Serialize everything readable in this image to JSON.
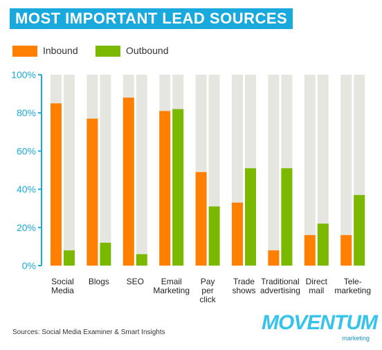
{
  "chart_data": {
    "type": "bar",
    "title": "MOST IMPORTANT LEAD SOURCES",
    "categories": [
      [
        "Social",
        "Media"
      ],
      [
        "Blogs"
      ],
      [
        "SEO"
      ],
      [
        "Email",
        "Marketing"
      ],
      [
        "Pay",
        "per",
        "click"
      ],
      [
        "Trade",
        "shows"
      ],
      [
        "Traditional",
        "advertising"
      ],
      [
        "Direct",
        "mail"
      ],
      [
        "Tele-",
        "marketing"
      ]
    ],
    "series": [
      {
        "name": "Inbound",
        "color": "#ff7f00",
        "values": [
          85,
          77,
          88,
          81,
          49,
          33,
          8,
          16,
          16
        ]
      },
      {
        "name": "Outbound",
        "color": "#7bb800",
        "values": [
          8,
          12,
          6,
          82,
          31,
          51,
          51,
          22,
          37
        ]
      }
    ],
    "background_color": "#e6e6e1",
    "yticks": [
      "0%",
      "20%",
      "40%",
      "60%",
      "80%",
      "100%"
    ],
    "ylim": [
      0,
      100
    ],
    "legend_position": "top-left",
    "grid": false
  },
  "source": "Sources: Social Media Examiner & Smart Insights",
  "logo": {
    "word": "MOVENTUM",
    "sub": "marketing",
    "color": "#36c3ea"
  }
}
